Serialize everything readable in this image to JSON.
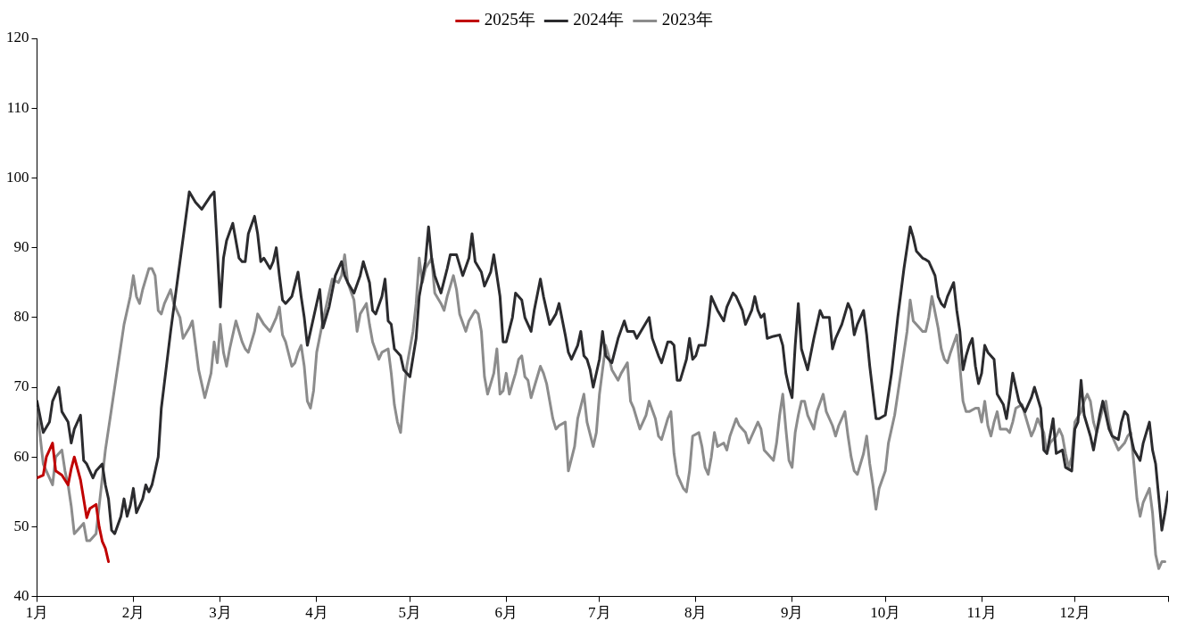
{
  "chart_data": {
    "type": "line",
    "legend": "top",
    "marker": "none",
    "line_style": "solid",
    "grid": false,
    "xlim": [
      "--01-01",
      "--12-31"
    ],
    "xticks": [
      {
        "value": "--01-01",
        "label": "1月"
      },
      {
        "value": "--02-01",
        "label": "2月"
      },
      {
        "value": "--03-01",
        "label": "3月"
      },
      {
        "value": "--04-01",
        "label": "4月"
      },
      {
        "value": "--05-01",
        "label": "5月"
      },
      {
        "value": "--06-01",
        "label": "6月"
      },
      {
        "value": "--07-01",
        "label": "7月"
      },
      {
        "value": "--08-01",
        "label": "8月"
      },
      {
        "value": "--09-01",
        "label": "9月"
      },
      {
        "value": "--10-01",
        "label": "10月"
      },
      {
        "value": "--11-01",
        "label": "11月"
      },
      {
        "value": "--12-01",
        "label": "12月"
      },
      {
        "value": "--12-31",
        "label": null
      }
    ],
    "ylim": [
      40,
      120
    ],
    "yticks": [
      40,
      50,
      60,
      70,
      80,
      90,
      100,
      110,
      120
    ],
    "series": [
      {
        "name": "2025年",
        "color": "#c00000",
        "x": [
          "--01-01",
          "--01-03",
          "--01-04",
          "--01-06",
          "--01-07",
          "--01-09",
          "--01-11",
          "--01-12",
          "--01-13",
          "--01-15",
          "--01-17",
          "--01-18",
          "--01-20",
          "--01-21",
          "--01-22",
          "--01-23",
          "--01-24"
        ],
        "values": [
          57,
          57.4,
          60,
          62,
          58,
          57.4,
          56,
          58.3,
          60,
          56.7,
          51.3,
          52.6,
          53.2,
          50,
          47.9,
          46.9,
          45
        ]
      },
      {
        "name": "2024年",
        "color": "#2b2b2e",
        "x": [
          "--01-01",
          "--01-03",
          "--01-05",
          "--01-06",
          "--01-08",
          "--01-09",
          "--01-11",
          "--01-12",
          "--01-13",
          "--01-15",
          "--01-16",
          "--01-17",
          "--01-19",
          "--01-20",
          "--01-22",
          "--01-23",
          "--01-24",
          "--01-25",
          "--01-26",
          "--01-28",
          "--01-29",
          "--01-30",
          "--01-31",
          "--02-01",
          "--02-02",
          "--02-04",
          "--02-05",
          "--02-06",
          "--02-07",
          "--02-09",
          "--02-10",
          "--02-13",
          "--02-16",
          "--02-19",
          "--02-21",
          "--02-23",
          "--02-26",
          "--02-27",
          "--02-28",
          "--03-01",
          "--03-02",
          "--03-03",
          "--03-05",
          "--03-07",
          "--03-08",
          "--03-09",
          "--03-10",
          "--03-12",
          "--03-13",
          "--03-14",
          "--03-15",
          "--03-17",
          "--03-18",
          "--03-19",
          "--03-20",
          "--03-21",
          "--03-22",
          "--03-24",
          "--03-26",
          "--03-27",
          "--03-28",
          "--03-29",
          "--03-31",
          "--04-02",
          "--04-03",
          "--04-05",
          "--04-07",
          "--04-09",
          "--04-10",
          "--04-11",
          "--04-13",
          "--04-15",
          "--04-16",
          "--04-18",
          "--04-19",
          "--04-20",
          "--04-22",
          "--04-23",
          "--04-24",
          "--04-25",
          "--04-26",
          "--04-28",
          "--04-29",
          "--05-01",
          "--05-03",
          "--05-04",
          "--05-06",
          "--05-07",
          "--05-08",
          "--05-09",
          "--05-11",
          "--05-13",
          "--05-14",
          "--05-16",
          "--05-17",
          "--05-18",
          "--05-20",
          "--05-21",
          "--05-22",
          "--05-24",
          "--05-25",
          "--05-27",
          "--05-28",
          "--05-30",
          "--05-31",
          "--06-01",
          "--06-03",
          "--06-04",
          "--06-06",
          "--06-07",
          "--06-09",
          "--06-10",
          "--06-12",
          "--06-13",
          "--06-15",
          "--06-17",
          "--06-18",
          "--06-20",
          "--06-21",
          "--06-22",
          "--06-24",
          "--06-25",
          "--06-26",
          "--06-27",
          "--06-28",
          "--06-29",
          "--07-01",
          "--07-02",
          "--07-03",
          "--07-05",
          "--07-07",
          "--07-09",
          "--07-10",
          "--07-12",
          "--07-13",
          "--07-15",
          "--07-17",
          "--07-18",
          "--07-20",
          "--07-21",
          "--07-22",
          "--07-23",
          "--07-24",
          "--07-25",
          "--07-26",
          "--07-27",
          "--07-29",
          "--07-30",
          "--07-31",
          "--08-01",
          "--08-02",
          "--08-04",
          "--08-05",
          "--08-06",
          "--08-08",
          "--08-10",
          "--08-11",
          "--08-13",
          "--08-14",
          "--08-16",
          "--08-17",
          "--08-19",
          "--08-20",
          "--08-21",
          "--08-22",
          "--08-23",
          "--08-24",
          "--08-26",
          "--08-28",
          "--08-29",
          "--08-30",
          "--08-31",
          "--09-01",
          "--09-02",
          "--09-03",
          "--09-04",
          "--09-05",
          "--09-06",
          "--09-08",
          "--09-10",
          "--09-11",
          "--09-13",
          "--09-14",
          "--09-15",
          "--09-17",
          "--09-19",
          "--09-20",
          "--09-21",
          "--09-22",
          "--09-24",
          "--09-25",
          "--09-26",
          "--09-28",
          "--09-29",
          "--10-01",
          "--10-03",
          "--10-05",
          "--10-07",
          "--10-09",
          "--10-10",
          "--10-11",
          "--10-13",
          "--10-14",
          "--10-15",
          "--10-17",
          "--10-18",
          "--10-19",
          "--10-20",
          "--10-21",
          "--10-23",
          "--10-24",
          "--10-25",
          "--10-26",
          "--10-27",
          "--10-28",
          "--10-29",
          "--10-30",
          "--10-31",
          "--11-01",
          "--11-02",
          "--11-03",
          "--11-05",
          "--11-06",
          "--11-08",
          "--11-09",
          "--11-10",
          "--11-11",
          "--11-12",
          "--11-13",
          "--11-15",
          "--11-17",
          "--11-18",
          "--11-20",
          "--11-21",
          "--11-22",
          "--11-23",
          "--11-24",
          "--11-25",
          "--11-27",
          "--11-28",
          "--11-30",
          "--12-01",
          "--12-02",
          "--12-03",
          "--12-04",
          "--12-06",
          "--12-07",
          "--12-09",
          "--12-10",
          "--12-11",
          "--12-12",
          "--12-13",
          "--12-15",
          "--12-16",
          "--12-17",
          "--12-18",
          "--12-19",
          "--12-20",
          "--12-22",
          "--12-23",
          "--12-25",
          "--12-26",
          "--12-27",
          "--12-29",
          "--12-30",
          "--12-31"
        ],
        "values": [
          68,
          63.5,
          65,
          68,
          70,
          66.5,
          65,
          62,
          64,
          66,
          59.5,
          59,
          57,
          58,
          59,
          56,
          54,
          49.5,
          49,
          51.5,
          54,
          51.5,
          53,
          55.5,
          52,
          54,
          56,
          55,
          56,
          60,
          67,
          78,
          88,
          98,
          96.5,
          95.5,
          97.5,
          98,
          90,
          81.5,
          88.5,
          91,
          93.5,
          88.5,
          88,
          88,
          92,
          94.5,
          92,
          88,
          88.5,
          87,
          88,
          90,
          86,
          82.5,
          82,
          83,
          86.5,
          83,
          80,
          76,
          80,
          84,
          78.5,
          81.5,
          86,
          88,
          86,
          85,
          83.5,
          86,
          88,
          85,
          81,
          80.5,
          83,
          85.5,
          79.5,
          79,
          75.5,
          74.5,
          72.5,
          71.5,
          77,
          83,
          88,
          93,
          88.5,
          86,
          83.5,
          87,
          89,
          89,
          87.5,
          86,
          88.5,
          92,
          88,
          86.5,
          84.5,
          86.5,
          89,
          83,
          76.5,
          76.5,
          80,
          83.5,
          82.5,
          80,
          78,
          81,
          85.5,
          83,
          79,
          80.5,
          82,
          77.5,
          75,
          74,
          76,
          78,
          74.5,
          74,
          72.5,
          70,
          74,
          78,
          74.5,
          73.5,
          77,
          79.5,
          78,
          78,
          77,
          78.5,
          80,
          77,
          74.5,
          73.5,
          75,
          76.5,
          76.5,
          76,
          71,
          71,
          74,
          77,
          74,
          74.5,
          76,
          76,
          79,
          83,
          81,
          79.5,
          81.5,
          83.5,
          83,
          81,
          79,
          81,
          83,
          81,
          80,
          80.5,
          77,
          77.3,
          77.5,
          76,
          72,
          70,
          68.5,
          76,
          82,
          75.5,
          74,
          72.5,
          77,
          81,
          80,
          80,
          75.5,
          77,
          79,
          82,
          81,
          77.5,
          79,
          81,
          77.5,
          73,
          65.5,
          65.5,
          66,
          72,
          80,
          87,
          93,
          91.5,
          89.5,
          88.5,
          88.3,
          88,
          86,
          83,
          82,
          81.5,
          83,
          85,
          81,
          78,
          72.5,
          74.5,
          76,
          77,
          73,
          70.5,
          72,
          76,
          75,
          74,
          69,
          67.5,
          65.5,
          68.5,
          72,
          70,
          68,
          66.5,
          68.5,
          70,
          67,
          61,
          60.5,
          63,
          65.5,
          60.5,
          61,
          58.5,
          58,
          64,
          65,
          71,
          66,
          63,
          61,
          66,
          68,
          66,
          64,
          63,
          62.5,
          65,
          66.5,
          66,
          63,
          61,
          59.5,
          62,
          65,
          61,
          59,
          49.5,
          52,
          55
        ]
      },
      {
        "name": "2023年",
        "color": "#8c8c8c",
        "x": [
          "--01-01",
          "--01-02",
          "--01-03",
          "--01-05",
          "--01-06",
          "--01-07",
          "--01-09",
          "--01-10",
          "--01-11",
          "--01-12",
          "--01-13",
          "--01-15",
          "--01-16",
          "--01-17",
          "--01-18",
          "--01-20",
          "--01-21",
          "--01-22",
          "--01-23",
          "--01-25",
          "--01-27",
          "--01-29",
          "--01-30",
          "--01-31",
          "--02-01",
          "--02-02",
          "--02-03",
          "--02-04",
          "--02-06",
          "--02-07",
          "--02-08",
          "--02-09",
          "--02-10",
          "--02-11",
          "--02-13",
          "--02-14",
          "--02-16",
          "--02-17",
          "--02-19",
          "--02-20",
          "--02-21",
          "--02-22",
          "--02-23",
          "--02-24",
          "--02-26",
          "--02-27",
          "--02-28",
          "--03-01",
          "--03-02",
          "--03-03",
          "--03-04",
          "--03-06",
          "--03-08",
          "--03-09",
          "--03-10",
          "--03-12",
          "--03-13",
          "--03-15",
          "--03-17",
          "--03-19",
          "--03-20",
          "--03-21",
          "--03-22",
          "--03-24",
          "--03-25",
          "--03-26",
          "--03-27",
          "--03-28",
          "--03-29",
          "--03-30",
          "--03-31",
          "--04-01",
          "--04-03",
          "--04-04",
          "--04-05",
          "--04-06",
          "--04-08",
          "--04-09",
          "--04-10",
          "--04-11",
          "--04-13",
          "--04-14",
          "--04-15",
          "--04-17",
          "--04-18",
          "--04-19",
          "--04-21",
          "--04-22",
          "--04-24",
          "--04-25",
          "--04-26",
          "--04-27",
          "--04-28",
          "--04-29",
          "--04-30",
          "--05-02",
          "--05-03",
          "--05-04",
          "--05-05",
          "--05-06",
          "--05-08",
          "--05-09",
          "--05-11",
          "--05-12",
          "--05-13",
          "--05-15",
          "--05-16",
          "--05-17",
          "--05-19",
          "--05-20",
          "--05-22",
          "--05-23",
          "--05-24",
          "--05-25",
          "--05-26",
          "--05-28",
          "--05-29",
          "--05-30",
          "--05-31",
          "--06-01",
          "--06-02",
          "--06-04",
          "--06-05",
          "--06-06",
          "--06-07",
          "--06-08",
          "--06-09",
          "--06-11",
          "--06-12",
          "--06-13",
          "--06-14",
          "--06-16",
          "--06-17",
          "--06-18",
          "--06-20",
          "--06-21",
          "--06-23",
          "--06-24",
          "--06-26",
          "--06-27",
          "--06-29",
          "--06-30",
          "--07-01",
          "--07-03",
          "--07-04",
          "--07-05",
          "--07-07",
          "--07-08",
          "--07-10",
          "--07-11",
          "--07-12",
          "--07-14",
          "--07-16",
          "--07-17",
          "--07-19",
          "--07-20",
          "--07-21",
          "--07-22",
          "--07-23",
          "--07-24",
          "--07-25",
          "--07-26",
          "--07-28",
          "--07-29",
          "--07-30",
          "--07-31",
          "--08-02",
          "--08-03",
          "--08-04",
          "--08-05",
          "--08-06",
          "--08-07",
          "--08-08",
          "--08-10",
          "--08-11",
          "--08-12",
          "--08-14",
          "--08-15",
          "--08-17",
          "--08-18",
          "--08-19",
          "--08-21",
          "--08-22",
          "--08-23",
          "--08-24",
          "--08-26",
          "--08-27",
          "--08-28",
          "--08-29",
          "--08-30",
          "--08-31",
          "--09-01",
          "--09-02",
          "--09-03",
          "--09-04",
          "--09-05",
          "--09-06",
          "--09-08",
          "--09-09",
          "--09-11",
          "--09-12",
          "--09-14",
          "--09-15",
          "--09-16",
          "--09-18",
          "--09-19",
          "--09-20",
          "--09-21",
          "--09-22",
          "--09-24",
          "--09-25",
          "--09-26",
          "--09-27",
          "--09-28",
          "--09-29",
          "--10-01",
          "--10-02",
          "--10-04",
          "--10-06",
          "--10-08",
          "--10-09",
          "--10-10",
          "--10-12",
          "--10-13",
          "--10-14",
          "--10-15",
          "--10-16",
          "--10-18",
          "--10-19",
          "--10-20",
          "--10-21",
          "--10-22",
          "--10-24",
          "--10-25",
          "--10-26",
          "--10-27",
          "--10-28",
          "--10-30",
          "--10-31",
          "--11-01",
          "--11-02",
          "--11-03",
          "--11-04",
          "--11-05",
          "--11-06",
          "--11-07",
          "--11-09",
          "--11-10",
          "--11-11",
          "--11-12",
          "--11-14",
          "--11-15",
          "--11-17",
          "--11-18",
          "--11-19",
          "--11-21",
          "--11-22",
          "--11-23",
          "--11-25",
          "--11-26",
          "--11-27",
          "--11-28",
          "--11-29",
          "--11-30",
          "--12-01",
          "--12-03",
          "--12-04",
          "--12-05",
          "--12-06",
          "--12-07",
          "--12-08",
          "--12-10",
          "--12-11",
          "--12-12",
          "--12-13",
          "--12-14",
          "--12-15",
          "--12-17",
          "--12-18",
          "--12-19",
          "--12-20",
          "--12-21",
          "--12-22",
          "--12-23",
          "--12-25",
          "--12-26",
          "--12-27",
          "--12-28",
          "--12-29",
          "--12-30"
        ],
        "values": [
          67,
          63,
          59,
          57,
          56,
          60,
          61,
          58,
          56,
          53,
          49,
          50,
          50.5,
          48,
          48,
          49,
          53,
          57,
          61,
          67,
          73,
          79,
          81,
          83,
          86,
          83,
          82,
          84,
          87,
          87,
          86,
          81,
          80.5,
          82,
          84,
          82,
          80,
          77,
          78.5,
          79.5,
          76,
          72.5,
          70.5,
          68.5,
          72,
          76.5,
          73.5,
          79,
          75,
          73,
          75.5,
          79.5,
          76.5,
          75.5,
          75,
          78,
          80.5,
          79,
          78,
          80,
          81.5,
          77.5,
          76.5,
          73,
          73.5,
          75,
          76,
          73,
          68,
          67,
          69.5,
          75,
          79.5,
          81.5,
          83.5,
          85.5,
          85,
          86,
          89,
          85,
          82.5,
          78,
          80.5,
          82,
          79,
          76.5,
          74,
          75,
          75.5,
          72,
          67.5,
          65,
          63.5,
          68.5,
          73,
          78,
          82,
          88.5,
          85,
          87,
          88.5,
          83.5,
          82,
          81,
          83,
          86,
          84,
          80.5,
          78,
          79.5,
          81,
          80.5,
          78,
          71.5,
          69,
          72,
          75.5,
          69,
          69.5,
          72,
          69,
          72,
          74,
          74.5,
          71.5,
          71,
          68.5,
          71.5,
          73,
          72,
          70.5,
          65.5,
          64,
          64.5,
          65,
          58,
          61.5,
          65.5,
          69,
          65,
          61.5,
          63.5,
          69,
          76,
          74.5,
          72.5,
          71,
          72,
          73.5,
          68,
          67,
          64,
          66,
          68,
          65.5,
          63,
          62.5,
          64,
          65.5,
          66.5,
          60.5,
          57.5,
          55.5,
          55,
          58,
          63,
          63.5,
          61.5,
          58.5,
          57.5,
          60,
          63.5,
          61.5,
          62,
          61,
          63,
          65.5,
          64.5,
          63.5,
          62,
          63,
          65,
          64,
          61,
          60.5,
          59.5,
          62,
          66,
          69,
          64,
          59.5,
          58.5,
          63.5,
          66,
          68,
          68,
          66,
          64,
          66.5,
          69,
          66.5,
          64.5,
          63,
          64.5,
          66.5,
          63,
          60,
          58,
          57.5,
          60.5,
          63,
          59,
          56,
          52.5,
          55.5,
          58,
          62,
          66,
          72,
          78,
          82.5,
          79.5,
          78.5,
          78,
          78,
          80,
          83,
          78.5,
          75.5,
          74,
          73.5,
          75,
          77.5,
          73,
          68,
          66.5,
          66.5,
          67,
          67,
          65,
          68,
          64.5,
          63,
          65,
          66.5,
          64,
          64,
          63.5,
          65,
          67,
          67.5,
          66,
          63,
          64,
          65.5,
          63.5,
          60.5,
          62,
          63,
          64,
          63,
          60.5,
          58.5,
          60,
          65,
          66.5,
          68,
          69,
          68,
          65,
          63.5,
          67,
          68,
          65,
          63,
          62,
          61,
          62,
          63,
          63.5,
          59,
          54,
          51.5,
          53.5,
          55.5,
          52,
          46,
          44,
          45,
          45
        ]
      }
    ]
  }
}
